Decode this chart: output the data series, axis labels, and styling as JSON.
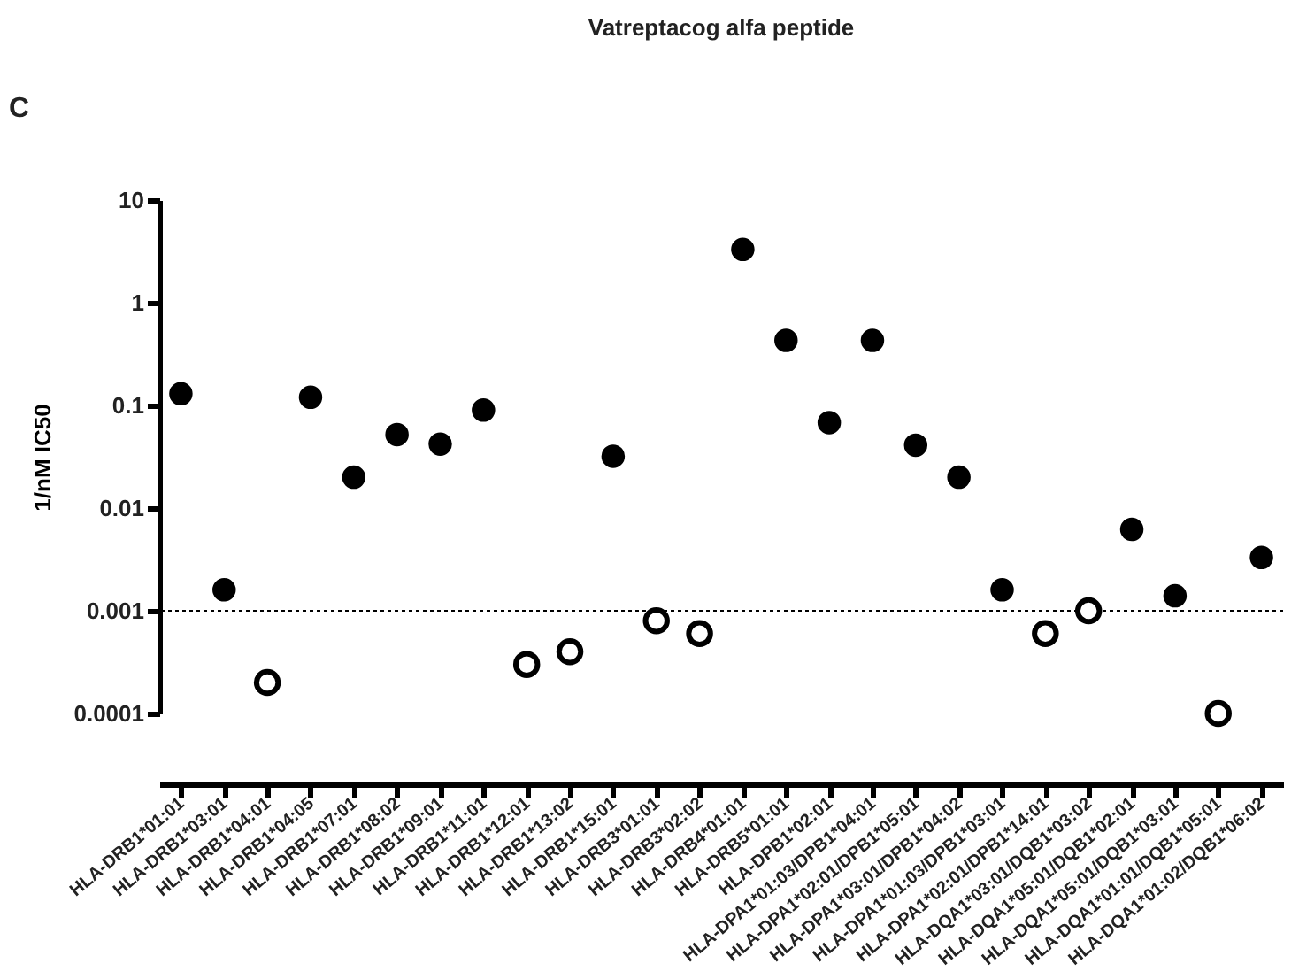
{
  "chart_data": {
    "type": "scatter",
    "title": "Vatreptacog alfa peptide",
    "ylabel": "1/nM IC50",
    "annotations": [
      "C"
    ],
    "categories": [
      "HLA-DRB1*01:01",
      "HLA-DRB1*03:01",
      "HLA-DRB1*04:01",
      "HLA-DRB1*04:05",
      "HLA-DRB1*07:01",
      "HLA-DRB1*08:02",
      "HLA-DRB1*09:01",
      "HLA-DRB1*11:01",
      "HLA-DRB1*12:01",
      "HLA-DRB1*13:02",
      "HLA-DRB1*15:01",
      "HLA-DRB3*01:01",
      "HLA-DRB3*02:02",
      "HLA-DRB4*01:01",
      "HLA-DRB5*01:01",
      "HLA-DPB1*02:01",
      "HLA-DPA1*01:03/DPB1*04:01",
      "HLA-DPA1*02:01/DPB1*05:01",
      "HLA-DPA1*03:01/DPB1*04:02",
      "HLA-DPA1*01:03/DPB1*03:01",
      "HLA-DPA1*02:01/DPB1*14:01",
      "HLA-DQA1*03:01/DQB1*03:02",
      "HLA-DQA1*05:01/DQB1*02:01",
      "HLA-DQA1*05:01/DQB1*03:01",
      "HLA-DQA1*01:01/DQB1*05:01",
      "HLA-DQA1*01:02/DQB1*06:02"
    ],
    "series": [
      {
        "color": "#000000",
        "values": [
          0.13,
          0.0016,
          null,
          0.12,
          0.02,
          0.052,
          0.042,
          0.09,
          null,
          null,
          0.032,
          null,
          null,
          3.3,
          0.43,
          0.068,
          0.43,
          0.041,
          0.02,
          0.0016,
          null,
          null,
          0.0062,
          0.0014,
          null,
          0.0033
        ]
      },
      {
        "color": "#000000",
        "values": [
          null,
          null,
          0.0002,
          null,
          null,
          null,
          null,
          null,
          0.0003,
          0.0004,
          null,
          0.0008,
          0.0006,
          null,
          null,
          null,
          null,
          null,
          null,
          null,
          0.0006,
          0.001,
          null,
          null,
          0.0001,
          null
        ]
      }
    ],
    "log": true,
    "ylim": [
      0.0001,
      10
    ],
    "yticks": [
      0.0001,
      0.001,
      0.01,
      0.1,
      1,
      10
    ],
    "ref_lines": [
      {
        "axis": "y",
        "value": 0.001,
        "line_style": "dotted",
        "color": "#000000"
      }
    ],
    "marker": "circle",
    "grid": false
  }
}
